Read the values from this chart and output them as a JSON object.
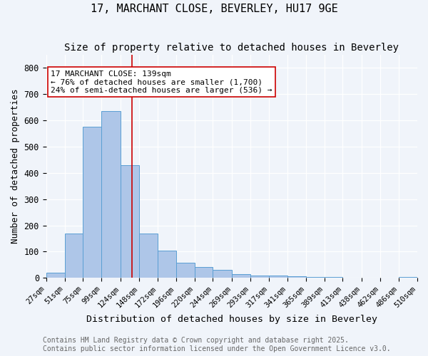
{
  "title": "17, MARCHANT CLOSE, BEVERLEY, HU17 9GE",
  "subtitle": "Size of property relative to detached houses in Beverley",
  "xlabel": "Distribution of detached houses by size in Beverley",
  "ylabel": "Number of detached properties",
  "bin_edges": [
    27,
    51,
    75,
    99,
    124,
    148,
    172,
    196,
    220,
    244,
    269,
    293,
    317,
    341,
    365,
    389,
    413,
    438,
    462,
    486,
    510
  ],
  "bar_heights": [
    20,
    170,
    575,
    635,
    430,
    170,
    105,
    57,
    42,
    32,
    15,
    10,
    8,
    6,
    5,
    3,
    2,
    1,
    1,
    5
  ],
  "bar_color": "#aec6e8",
  "bar_edge_color": "#5a9fd4",
  "property_size": 139,
  "vline_color": "#cc0000",
  "annotation_text": "17 MARCHANT CLOSE: 139sqm\n← 76% of detached houses are smaller (1,700)\n24% of semi-detached houses are larger (536) →",
  "annotation_box_color": "#ffffff",
  "annotation_box_edge": "#cc0000",
  "ylim": [
    0,
    850
  ],
  "yticks": [
    0,
    100,
    200,
    300,
    400,
    500,
    600,
    700,
    800
  ],
  "tick_labels": [
    "27sqm",
    "51sqm",
    "75sqm",
    "99sqm",
    "124sqm",
    "148sqm",
    "172sqm",
    "196sqm",
    "220sqm",
    "244sqm",
    "269sqm",
    "293sqm",
    "317sqm",
    "341sqm",
    "365sqm",
    "389sqm",
    "413sqm",
    "438sqm",
    "462sqm",
    "486sqm",
    "510sqm"
  ],
  "footer_text": "Contains HM Land Registry data © Crown copyright and database right 2025.\nContains public sector information licensed under the Open Government Licence v3.0.",
  "background_color": "#f0f4fa",
  "grid_color": "#ffffff",
  "title_fontsize": 11,
  "subtitle_fontsize": 10,
  "axis_fontsize": 9,
  "tick_fontsize": 8,
  "footer_fontsize": 7
}
